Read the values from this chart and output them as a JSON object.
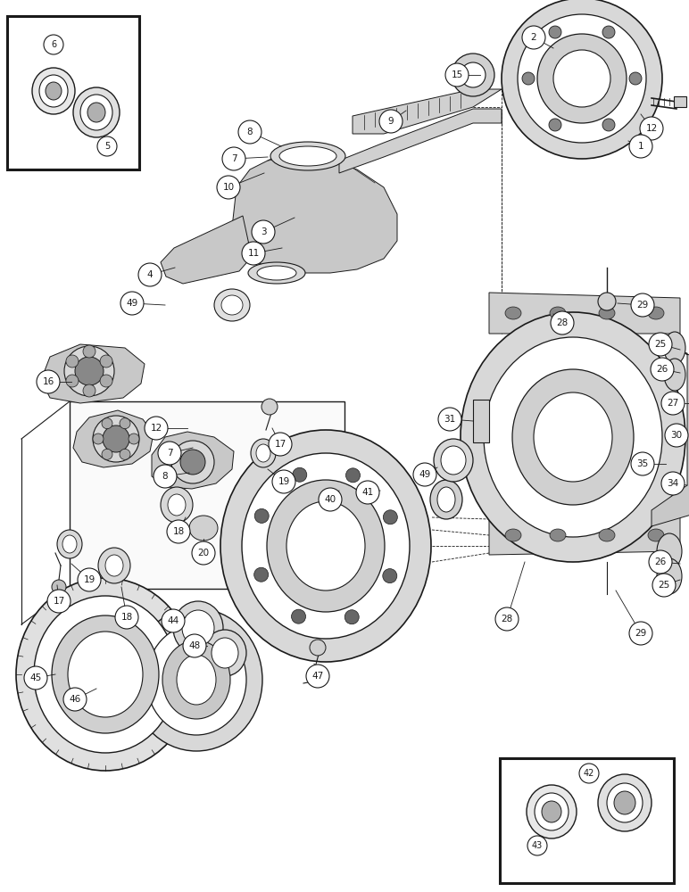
{
  "background_color": "#ffffff",
  "line_color": "#1a1a1a",
  "lw": 0.7,
  "fig_w": 7.72,
  "fig_h": 10.0,
  "dpi": 100
}
